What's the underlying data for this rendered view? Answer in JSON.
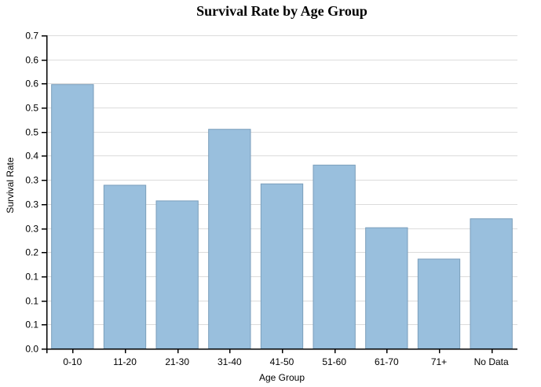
{
  "chart_data": {
    "type": "bar",
    "title": "Survival Rate by Age Group",
    "xlabel": "Age Group",
    "ylabel": "Survival Rate",
    "categories": [
      "0-10",
      "11-20",
      "21-30",
      "31-40",
      "41-50",
      "51-60",
      "61-70",
      "71+",
      "No Data"
    ],
    "values": [
      0.59,
      0.365,
      0.33,
      0.49,
      0.368,
      0.41,
      0.27,
      0.2,
      0.29
    ],
    "ylim": [
      0,
      0.7
    ],
    "y_tick_labels": [
      "0.0",
      "0.1",
      "0.1",
      "0.1",
      "0.2",
      "0.3",
      "0.3",
      "0.3",
      "0.4",
      "0.5",
      "0.5",
      "0.6",
      "0.6",
      "0.7"
    ],
    "grid": true,
    "colors": {
      "bar_fill": "#99bfdd",
      "bar_stroke": "#7a9ebb",
      "grid": "#dcdcdc",
      "axis": "#000000"
    }
  }
}
